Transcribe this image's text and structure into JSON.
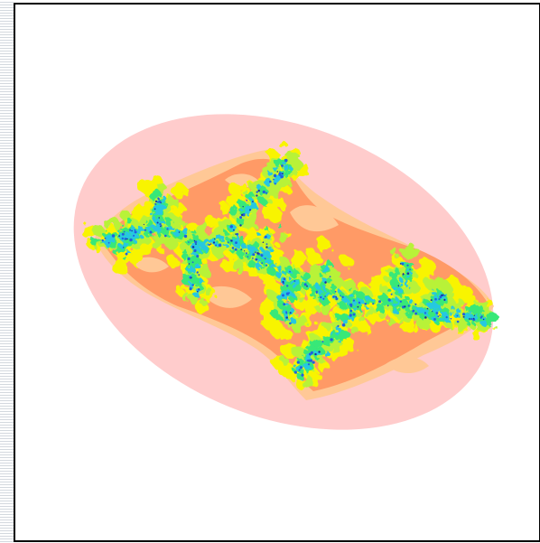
{
  "image": {
    "subject": "fractal-julia-set",
    "palette": {
      "background": "#ffffff",
      "border": "#000000",
      "outer_halo": "#ffcccc",
      "peach": "#ffc896",
      "orange": "#ff9a66",
      "yellow": "#f8f400",
      "lime": "#b8f238",
      "green": "#38e878",
      "cyan": "#28c8e0",
      "blue": "#2060e0",
      "navy": "#1830a0"
    }
  }
}
